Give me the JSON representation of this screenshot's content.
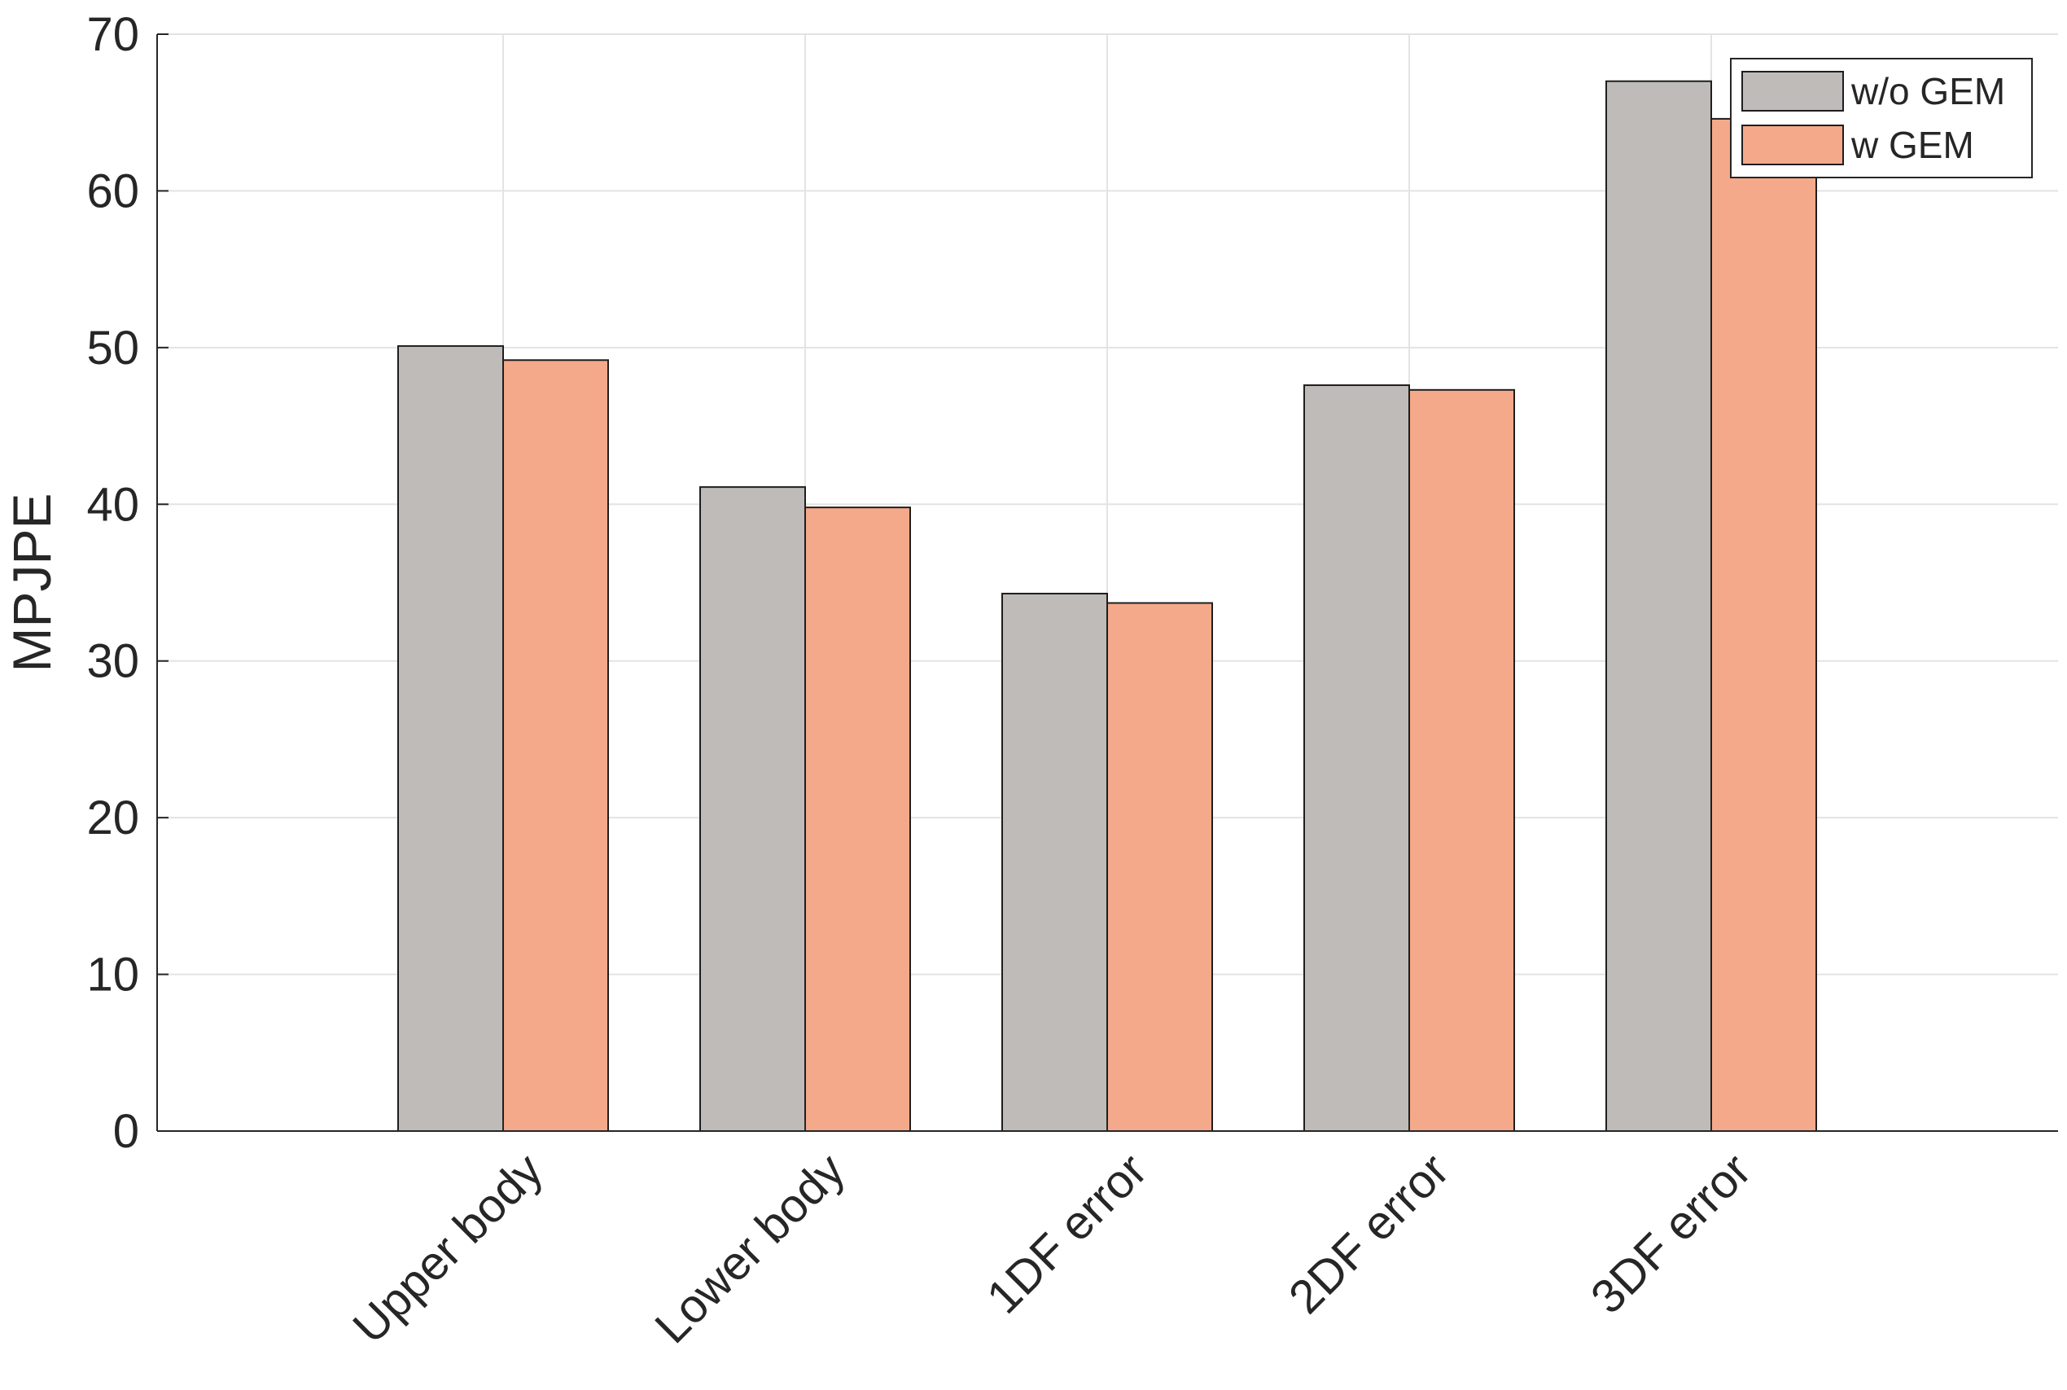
{
  "chart_data": {
    "type": "bar",
    "title": "",
    "xlabel": "",
    "ylabel": "MPJPE",
    "categories": [
      "Upper body",
      "Lower body",
      "1DF error",
      "2DF error",
      "3DF error"
    ],
    "series": [
      {
        "name": "w/o GEM",
        "values": [
          50.1,
          41.1,
          34.3,
          47.6,
          67.0
        ]
      },
      {
        "name": "w GEM",
        "values": [
          49.2,
          39.8,
          33.7,
          47.3,
          64.6
        ]
      }
    ],
    "ylim": [
      0,
      70
    ],
    "yticks": [
      0,
      10,
      20,
      30,
      40,
      50,
      60,
      70
    ],
    "grid": true,
    "legend": "top-right",
    "colors": {
      "series": [
        "#bfbbb8",
        "#f4a98a"
      ],
      "edge": "#1e1e1e",
      "grid": "#e3e3e3",
      "axis": "#262626"
    }
  }
}
